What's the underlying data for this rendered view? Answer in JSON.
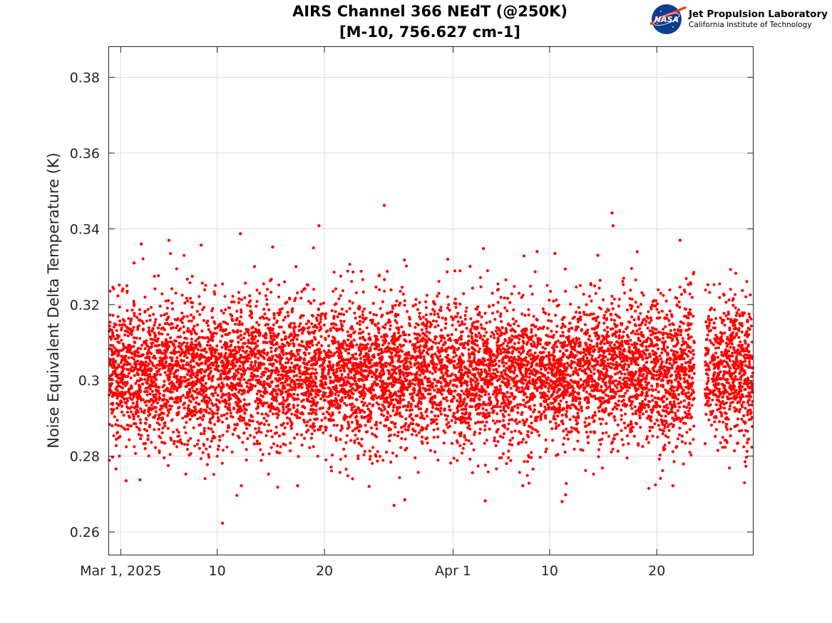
{
  "logo": {
    "icon": "nasa-meatball-icon",
    "org_name": "Jet Propulsion Laboratory",
    "org_sub": "California Institute of Technology",
    "colors": {
      "blue": "#0b3d91",
      "red": "#fc3d21"
    }
  },
  "chart_data": {
    "type": "scatter",
    "title": "AIRS Channel 366 NEdT (@250K)",
    "subtitle": "[M-10, 756.627 cm-1]",
    "xlabel": "",
    "ylabel": "Noise Equivalent Delta Temperature (K)",
    "x_type": "date",
    "xlim": [
      "2025-02-27T22:00",
      "2025-04-28T23:00"
    ],
    "ylim": [
      0.254,
      0.388
    ],
    "x_ticks": [
      {
        "date": "2025-03-01",
        "label": "Mar 1, 2025"
      },
      {
        "date": "2025-03-10",
        "label": "10"
      },
      {
        "date": "2025-03-20",
        "label": "20"
      },
      {
        "date": "2025-04-01",
        "label": "Apr 1"
      },
      {
        "date": "2025-04-10",
        "label": "10"
      },
      {
        "date": "2025-04-20",
        "label": "20"
      }
    ],
    "y_ticks": [
      {
        "value": 0.26,
        "label": "0.26"
      },
      {
        "value": 0.28,
        "label": "0.28"
      },
      {
        "value": 0.3,
        "label": "0.3"
      },
      {
        "value": 0.32,
        "label": "0.32"
      },
      {
        "value": 0.34,
        "label": "0.34"
      },
      {
        "value": 0.36,
        "label": "0.36"
      },
      {
        "value": 0.38,
        "label": "0.38"
      }
    ],
    "grid": true,
    "marker_color": "#ff0000",
    "series": [
      {
        "name": "",
        "density": {
          "mean": 0.302,
          "std": 0.0095,
          "range": [
            0.267,
            0.346
          ],
          "samples_per_day": 140,
          "gap": [
            "2025-04-23T12:00",
            "2025-04-24T12:00"
          ]
        },
        "points": [
          {
            "x": "2025-03-10T12:00",
            "y": 0.2623
          },
          {
            "x": "2025-03-25T14:00",
            "y": 0.3462
          },
          {
            "x": "2025-03-19T12:00",
            "y": 0.3408
          },
          {
            "x": "2025-04-15T20:00",
            "y": 0.3442
          },
          {
            "x": "2025-04-15T22:00",
            "y": 0.3408
          },
          {
            "x": "2025-03-12T04:00",
            "y": 0.3387
          },
          {
            "x": "2025-03-05T12:00",
            "y": 0.337
          },
          {
            "x": "2025-04-22T04:00",
            "y": 0.337
          },
          {
            "x": "2025-03-08T12:00",
            "y": 0.3357
          },
          {
            "x": "2025-03-02T22:00",
            "y": 0.336
          },
          {
            "x": "2025-04-03T20:00",
            "y": 0.3348
          },
          {
            "x": "2025-03-15T04:00",
            "y": 0.3352
          },
          {
            "x": "2025-04-08T20:00",
            "y": 0.334
          },
          {
            "x": "2025-04-10T12:00",
            "y": 0.3335
          },
          {
            "x": "2025-04-14T12:00",
            "y": 0.333
          },
          {
            "x": "2025-03-02T06:00",
            "y": 0.331
          },
          {
            "x": "2025-03-31T12:00",
            "y": 0.332
          },
          {
            "x": "2025-03-26T12:00",
            "y": 0.267
          },
          {
            "x": "2025-03-27T12:00",
            "y": 0.2685
          },
          {
            "x": "2025-04-11T04:00",
            "y": 0.268
          },
          {
            "x": "2025-04-11T12:00",
            "y": 0.2698
          },
          {
            "x": "2025-04-04T00:00",
            "y": 0.2682
          },
          {
            "x": "2025-03-01T12:00",
            "y": 0.2735
          },
          {
            "x": "2025-03-24T04:00",
            "y": 0.272
          },
          {
            "x": "2025-04-07T12:00",
            "y": 0.2722
          },
          {
            "x": "2025-04-21T12:00",
            "y": 0.2722
          },
          {
            "x": "2025-03-12T06:00",
            "y": 0.2722
          },
          {
            "x": "2025-03-17T12:00",
            "y": 0.2722
          }
        ]
      }
    ]
  }
}
